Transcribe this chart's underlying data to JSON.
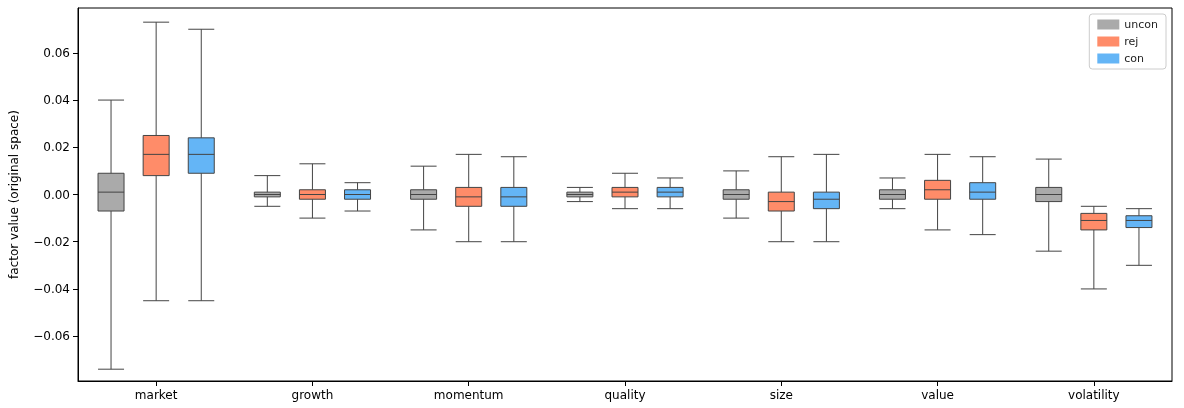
{
  "chart_data": {
    "type": "box",
    "ylabel": "factor value (original space)",
    "categories": [
      "market",
      "growth",
      "momentum",
      "quality",
      "size",
      "value",
      "volatility"
    ],
    "series": [
      {
        "name": "uncon",
        "color": "#aaaaaa",
        "boxes": [
          {
            "low": -0.074,
            "q1": -0.007,
            "median": 0.001,
            "q3": 0.009,
            "high": 0.04
          },
          {
            "low": -0.005,
            "q1": -0.001,
            "median": 0.0,
            "q3": 0.001,
            "high": 0.008
          },
          {
            "low": -0.015,
            "q1": -0.002,
            "median": 0.0,
            "q3": 0.002,
            "high": 0.012
          },
          {
            "low": -0.003,
            "q1": -0.001,
            "median": 0.0,
            "q3": 0.001,
            "high": 0.003
          },
          {
            "low": -0.01,
            "q1": -0.002,
            "median": 0.0,
            "q3": 0.002,
            "high": 0.01
          },
          {
            "low": -0.006,
            "q1": -0.002,
            "median": 0.0,
            "q3": 0.002,
            "high": 0.007
          },
          {
            "low": -0.024,
            "q1": -0.003,
            "median": 0.0,
            "q3": 0.003,
            "high": 0.015
          }
        ]
      },
      {
        "name": "rej",
        "color": "#ff8c69",
        "boxes": [
          {
            "low": -0.045,
            "q1": 0.008,
            "median": 0.017,
            "q3": 0.025,
            "high": 0.073
          },
          {
            "low": -0.01,
            "q1": -0.002,
            "median": 0.0,
            "q3": 0.002,
            "high": 0.013
          },
          {
            "low": -0.02,
            "q1": -0.005,
            "median": -0.001,
            "q3": 0.003,
            "high": 0.017
          },
          {
            "low": -0.006,
            "q1": -0.001,
            "median": 0.001,
            "q3": 0.003,
            "high": 0.009
          },
          {
            "low": -0.02,
            "q1": -0.007,
            "median": -0.003,
            "q3": 0.001,
            "high": 0.016
          },
          {
            "low": -0.015,
            "q1": -0.002,
            "median": 0.002,
            "q3": 0.006,
            "high": 0.017
          },
          {
            "low": -0.04,
            "q1": -0.015,
            "median": -0.011,
            "q3": -0.008,
            "high": -0.005
          }
        ]
      },
      {
        "name": "con",
        "color": "#64b5f6",
        "boxes": [
          {
            "low": -0.045,
            "q1": 0.009,
            "median": 0.017,
            "q3": 0.024,
            "high": 0.07
          },
          {
            "low": -0.007,
            "q1": -0.002,
            "median": 0.0,
            "q3": 0.002,
            "high": 0.005
          },
          {
            "low": -0.02,
            "q1": -0.005,
            "median": -0.001,
            "q3": 0.003,
            "high": 0.016
          },
          {
            "low": -0.006,
            "q1": -0.001,
            "median": 0.001,
            "q3": 0.003,
            "high": 0.007
          },
          {
            "low": -0.02,
            "q1": -0.006,
            "median": -0.002,
            "q3": 0.001,
            "high": 0.017
          },
          {
            "low": -0.017,
            "q1": -0.002,
            "median": 0.001,
            "q3": 0.005,
            "high": 0.016
          },
          {
            "low": -0.03,
            "q1": -0.014,
            "median": -0.011,
            "q3": -0.009,
            "high": -0.006
          }
        ]
      }
    ],
    "ylim": [
      -0.079,
      0.079
    ],
    "yticks": [
      {
        "value": -0.06,
        "label": "−0.06"
      },
      {
        "value": -0.04,
        "label": "−0.04"
      },
      {
        "value": -0.02,
        "label": "−0.02"
      },
      {
        "value": 0,
        "label": "0.00"
      },
      {
        "value": 0.02,
        "label": "0.02"
      },
      {
        "value": 0.04,
        "label": "0.04"
      },
      {
        "value": 0.06,
        "label": "0.06"
      }
    ],
    "grid": false,
    "legend": "top right"
  }
}
